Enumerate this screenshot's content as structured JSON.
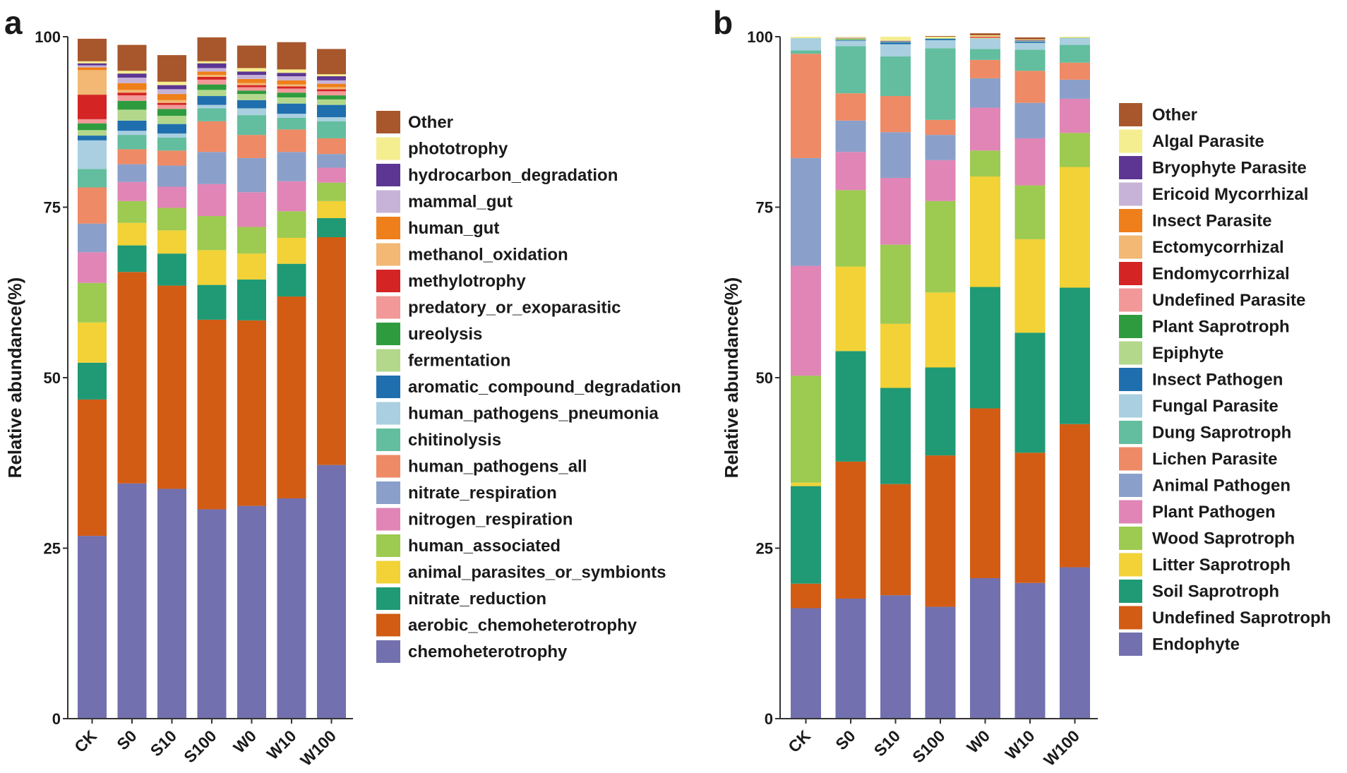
{
  "chart_data": [
    {
      "type": "bar",
      "stacked": true,
      "panel_letter": "a",
      "ylabel": "Relative abundance(%)",
      "ylim": [
        0,
        100
      ],
      "yticks": [
        0,
        25,
        50,
        75,
        100
      ],
      "categories": [
        "CK",
        "S0",
        "S10",
        "S100",
        "W0",
        "W10",
        "W100"
      ],
      "legend_order_top_to_bottom": [
        "Other",
        "phototrophy",
        "hydrocarbon_degradation",
        "mammal_gut",
        "human_gut",
        "methanol_oxidation",
        "methylotrophy",
        "predatory_or_exoparasitic",
        "ureolysis",
        "fermentation",
        "aromatic_compound_degradation",
        "human_pathogens_pneumonia",
        "chitinolysis",
        "human_pathogens_all",
        "nitrate_respiration",
        "nitrogen_respiration",
        "human_associated",
        "animal_parasites_or_symbionts",
        "nitrate_reduction",
        "aerobic_chemoheterotrophy",
        "chemoheterotrophy"
      ],
      "series": [
        {
          "name": "chemoheterotrophy",
          "color": "#7270ae",
          "values": [
            26.8,
            34.5,
            33.7,
            30.7,
            31.2,
            32.3,
            37.2
          ]
        },
        {
          "name": "aerobic_chemoheterotrophy",
          "color": "#d25c14",
          "values": [
            20.0,
            31.0,
            29.8,
            27.8,
            27.2,
            29.6,
            33.4
          ]
        },
        {
          "name": "nitrate_reduction",
          "color": "#1f9a75",
          "values": [
            5.4,
            3.9,
            4.7,
            5.1,
            6.0,
            4.8,
            2.8
          ]
        },
        {
          "name": "animal_parasites_or_symbionts",
          "color": "#f2d236",
          "values": [
            5.9,
            3.3,
            3.4,
            5.1,
            3.8,
            3.8,
            2.5
          ]
        },
        {
          "name": "human_associated",
          "color": "#9dca50",
          "values": [
            5.8,
            3.2,
            3.3,
            5.0,
            3.9,
            3.9,
            2.7
          ]
        },
        {
          "name": "nitrogen_respiration",
          "color": "#e085b6",
          "values": [
            4.5,
            2.8,
            3.1,
            4.7,
            5.1,
            4.4,
            2.2
          ]
        },
        {
          "name": "nitrate_respiration",
          "color": "#8aa0ca",
          "values": [
            4.2,
            2.6,
            3.1,
            4.7,
            5.0,
            4.3,
            2.0
          ]
        },
        {
          "name": "human_pathogens_all",
          "color": "#ee8a66",
          "values": [
            5.3,
            2.2,
            2.2,
            4.5,
            3.4,
            3.3,
            2.3
          ]
        },
        {
          "name": "chitinolysis",
          "color": "#62be9e",
          "values": [
            2.7,
            2.1,
            1.9,
            1.9,
            2.9,
            1.7,
            2.5
          ]
        },
        {
          "name": "human_pathogens_pneumonia",
          "color": "#a9cfe0",
          "values": [
            4.2,
            0.6,
            0.6,
            0.5,
            1.0,
            0.6,
            0.6
          ]
        },
        {
          "name": "aromatic_compound_degradation",
          "color": "#1f6fae",
          "values": [
            0.7,
            1.5,
            1.4,
            1.3,
            1.2,
            1.5,
            1.8
          ]
        },
        {
          "name": "fermentation",
          "color": "#b3d88c",
          "values": [
            0.8,
            1.6,
            1.2,
            0.9,
            0.9,
            0.9,
            0.8
          ]
        },
        {
          "name": "ureolysis",
          "color": "#2e9c3e",
          "values": [
            1.0,
            1.3,
            1.0,
            0.8,
            0.5,
            0.7,
            0.6
          ]
        },
        {
          "name": "predatory_or_exoparasitic",
          "color": "#f29898",
          "values": [
            0.6,
            0.8,
            0.6,
            0.7,
            0.5,
            0.6,
            0.6
          ]
        },
        {
          "name": "methylotrophy",
          "color": "#d42424",
          "values": [
            3.6,
            0.4,
            0.3,
            0.4,
            0.3,
            0.3,
            0.3
          ]
        },
        {
          "name": "methanol_oxidation",
          "color": "#f2b874",
          "values": [
            3.6,
            0.4,
            0.4,
            0.3,
            0.3,
            0.3,
            0.3
          ]
        },
        {
          "name": "human_gut",
          "color": "#ef7f1a",
          "values": [
            0.4,
            1.0,
            0.9,
            0.5,
            0.6,
            0.6,
            0.5
          ]
        },
        {
          "name": "mammal_gut",
          "color": "#c7b3d8",
          "values": [
            0.3,
            0.8,
            0.7,
            0.5,
            0.6,
            0.6,
            0.5
          ]
        },
        {
          "name": "hydrocarbon_degradation",
          "color": "#5d3693",
          "values": [
            0.3,
            0.6,
            0.6,
            0.7,
            0.5,
            0.5,
            0.6
          ]
        },
        {
          "name": "phototrophy",
          "color": "#f5ee91",
          "values": [
            0.3,
            0.4,
            0.5,
            0.3,
            0.5,
            0.5,
            0.3
          ]
        },
        {
          "name": "Other",
          "color": "#a8562c",
          "values": [
            3.3,
            3.8,
            3.9,
            3.5,
            3.3,
            4.0,
            3.7
          ]
        }
      ]
    },
    {
      "type": "bar",
      "stacked": true,
      "panel_letter": "b",
      "ylabel": "Relative abundance(%)",
      "ylim": [
        0,
        100
      ],
      "yticks": [
        0,
        25,
        50,
        75,
        100
      ],
      "categories": [
        "CK",
        "S0",
        "S10",
        "S100",
        "W0",
        "W10",
        "W100"
      ],
      "legend_order_top_to_bottom": [
        "Other",
        "Algal Parasite",
        "Bryophyte Parasite",
        "Ericoid Mycorrhizal",
        "Insect Parasite",
        "Ectomycorrhizal",
        "Endomycorrhizal",
        "Undefined Parasite",
        "Plant Saprotroph",
        "Epiphyte",
        "Insect Pathogen",
        "Fungal Parasite",
        "Dung Saprotroph",
        "Lichen Parasite",
        "Animal Pathogen",
        "Plant Pathogen",
        "Wood Saprotroph",
        "Litter Saprotroph",
        "Soil Saprotroph",
        "Undefined Saprotroph",
        "Endophyte"
      ],
      "series": [
        {
          "name": "Endophyte",
          "color": "#7270ae",
          "values": [
            16.2,
            17.6,
            18.1,
            16.4,
            20.6,
            19.9,
            22.2
          ]
        },
        {
          "name": "Undefined Saprotroph",
          "color": "#d25c14",
          "values": [
            3.6,
            20.1,
            16.3,
            22.2,
            24.9,
            19.1,
            21.0
          ]
        },
        {
          "name": "Soil Saprotroph",
          "color": "#1f9a75",
          "values": [
            14.3,
            16.2,
            14.1,
            12.9,
            17.8,
            17.6,
            20.0
          ]
        },
        {
          "name": "Litter Saprotroph",
          "color": "#f2d236",
          "values": [
            0.5,
            12.4,
            9.4,
            11.0,
            16.2,
            13.7,
            17.7
          ]
        },
        {
          "name": "Wood Saprotroph",
          "color": "#9dca50",
          "values": [
            15.7,
            11.2,
            11.6,
            13.4,
            3.8,
            7.9,
            5.0
          ]
        },
        {
          "name": "Plant Pathogen",
          "color": "#e085b6",
          "values": [
            16.1,
            5.6,
            9.8,
            6.0,
            6.3,
            6.9,
            5.0
          ]
        },
        {
          "name": "Animal Pathogen",
          "color": "#8aa0ca",
          "values": [
            15.8,
            4.6,
            6.7,
            3.7,
            4.3,
            5.2,
            2.8
          ]
        },
        {
          "name": "Lichen Parasite",
          "color": "#ee8a66",
          "values": [
            15.3,
            4.0,
            5.3,
            2.2,
            2.7,
            4.7,
            2.5
          ]
        },
        {
          "name": "Dung Saprotroph",
          "color": "#62be9e",
          "values": [
            0.5,
            6.9,
            5.8,
            10.5,
            1.6,
            3.1,
            2.6
          ]
        },
        {
          "name": "Fungal Parasite",
          "color": "#a9cfe0",
          "values": [
            1.8,
            0.8,
            1.8,
            1.2,
            1.5,
            1.0,
            1.0
          ]
        },
        {
          "name": "Insect Pathogen",
          "color": "#1f6fae",
          "values": [
            0.0,
            0.1,
            0.3,
            0.2,
            0.0,
            0.2,
            0.0
          ]
        },
        {
          "name": "Epiphyte",
          "color": "#b3d88c",
          "values": [
            0.0,
            0.1,
            0.1,
            0.1,
            0.1,
            0.1,
            0.1
          ]
        },
        {
          "name": "Plant Saprotroph",
          "color": "#2e9c3e",
          "values": [
            0.0,
            0.1,
            0.0,
            0.0,
            0.0,
            0.0,
            0.0
          ]
        },
        {
          "name": "Undefined Parasite",
          "color": "#f29898",
          "values": [
            0.0,
            0.0,
            0.0,
            0.0,
            0.1,
            0.0,
            0.0
          ]
        },
        {
          "name": "Endomycorrhizal",
          "color": "#d42424",
          "values": [
            0.0,
            0.0,
            0.0,
            0.0,
            0.1,
            0.0,
            0.0
          ]
        },
        {
          "name": "Ectomycorrhizal",
          "color": "#f2b874",
          "values": [
            0.0,
            0.1,
            0.0,
            0.0,
            0.0,
            0.0,
            0.0
          ]
        },
        {
          "name": "Insect Parasite",
          "color": "#ef7f1a",
          "values": [
            0.0,
            0.0,
            0.0,
            0.0,
            0.0,
            0.0,
            0.0
          ]
        },
        {
          "name": "Ericoid Mycorrhizal",
          "color": "#c7b3d8",
          "values": [
            0.0,
            0.1,
            0.0,
            0.0,
            0.0,
            0.0,
            0.0
          ]
        },
        {
          "name": "Bryophyte Parasite",
          "color": "#5d3693",
          "values": [
            0.0,
            0.0,
            0.1,
            0.0,
            0.0,
            0.1,
            0.0
          ]
        },
        {
          "name": "Algal Parasite",
          "color": "#f5ee91",
          "values": [
            0.2,
            0.1,
            0.6,
            0.2,
            0.2,
            0.1,
            0.1
          ]
        },
        {
          "name": "Other",
          "color": "#a8562c",
          "values": [
            0.0,
            0.0,
            0.0,
            0.1,
            0.3,
            0.3,
            0.0
          ]
        }
      ]
    }
  ]
}
